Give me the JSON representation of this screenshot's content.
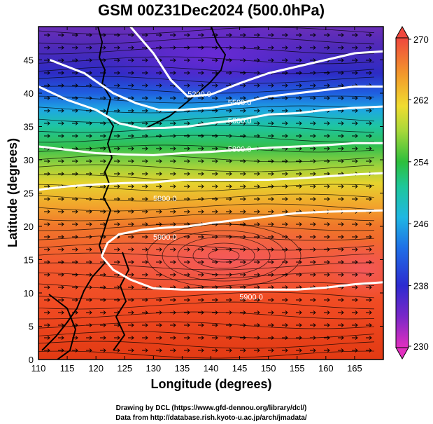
{
  "title": "GSM 00Z31Dec2024 (500.0hPa)",
  "footer": {
    "line1": "Drawing by DCL (https://www.gfd-dennou.org/library/dcl/)",
    "line2": "Data from http://database.rish.kyoto-u.ac.jp/arch/jmadata/"
  },
  "chart_data": {
    "type": "heatmap",
    "title": "GSM 00Z31Dec2024 (500.0hPa)",
    "xlabel": "Longitude (degrees)",
    "ylabel": "Latitude  (degrees)",
    "xlim": [
      110,
      170
    ],
    "ylim": [
      0,
      50
    ],
    "x_ticks": [
      "110",
      "115",
      "120",
      "125",
      "130",
      "135",
      "140",
      "145",
      "150",
      "155",
      "160",
      "165"
    ],
    "y_ticks": [
      "0",
      "5",
      "10",
      "15",
      "20",
      "25",
      "30",
      "35",
      "40",
      "45"
    ],
    "colorbar": {
      "min": 230,
      "max": 270,
      "tick_labels": [
        "230",
        "238",
        "246",
        "254",
        "262",
        "270"
      ]
    },
    "contours": [
      {
        "label": "5200.0",
        "label_pos": [
          138,
          39.5
        ],
        "points": [
          [
            126,
            50
          ],
          [
            130,
            46
          ],
          [
            133,
            42
          ],
          [
            136,
            39.5
          ],
          [
            140,
            39.8
          ],
          [
            145,
            41.5
          ],
          [
            150,
            43
          ],
          [
            155,
            44
          ],
          [
            160,
            45
          ],
          [
            165,
            46
          ],
          [
            170,
            46.3
          ]
        ]
      },
      {
        "label": "5500.0",
        "label_pos": [
          145,
          38.2
        ],
        "points": [
          [
            112,
            45
          ],
          [
            118,
            43
          ],
          [
            123,
            40
          ],
          [
            127,
            38.5
          ],
          [
            131,
            37.5
          ],
          [
            135,
            37.5
          ],
          [
            140,
            37.8
          ],
          [
            145,
            38.5
          ],
          [
            150,
            39.5
          ],
          [
            155,
            40
          ],
          [
            160,
            40.5
          ],
          [
            165,
            41
          ],
          [
            170,
            41
          ]
        ]
      },
      {
        "label": "5600.0",
        "label_pos": [
          145,
          35.5
        ],
        "points": [
          [
            110,
            41
          ],
          [
            115,
            39
          ],
          [
            120,
            37.5
          ],
          [
            124,
            35.5
          ],
          [
            128,
            34.7
          ],
          [
            132,
            34.8
          ],
          [
            136,
            35
          ],
          [
            140,
            35.5
          ],
          [
            145,
            36
          ],
          [
            150,
            36.8
          ],
          [
            155,
            37
          ],
          [
            160,
            37.5
          ],
          [
            165,
            37.8
          ],
          [
            170,
            38
          ]
        ]
      },
      {
        "label": "5800.0",
        "label_pos": [
          145,
          31.2
        ],
        "points": [
          [
            110,
            32
          ],
          [
            115,
            31.5
          ],
          [
            120,
            31
          ],
          [
            125,
            30.8
          ],
          [
            130,
            30.7
          ],
          [
            135,
            31
          ],
          [
            140,
            31.2
          ],
          [
            145,
            31.5
          ],
          [
            150,
            31.8
          ],
          [
            155,
            32
          ],
          [
            160,
            32.2
          ],
          [
            165,
            32.5
          ],
          [
            170,
            32.5
          ]
        ]
      },
      {
        "label": "5800.0",
        "label_pos": [
          132,
          23.8
        ],
        "points": [
          [
            110,
            25.5
          ],
          [
            115,
            26
          ],
          [
            120,
            26.3
          ],
          [
            125,
            26.5
          ],
          [
            130,
            26.6
          ],
          [
            135,
            27
          ],
          [
            140,
            27
          ],
          [
            145,
            27
          ],
          [
            150,
            27
          ],
          [
            155,
            27.2
          ],
          [
            160,
            27.5
          ],
          [
            165,
            27.8
          ],
          [
            170,
            28
          ]
        ]
      },
      {
        "label": "5900.0",
        "label_pos": [
          132,
          18
        ],
        "points": [
          [
            121,
            15.5
          ],
          [
            122,
            17.5
          ],
          [
            124,
            18.8
          ],
          [
            128,
            19.5
          ],
          [
            132,
            19.8
          ],
          [
            136,
            20
          ],
          [
            140,
            20.5
          ],
          [
            145,
            21
          ],
          [
            150,
            21.5
          ],
          [
            155,
            22
          ],
          [
            160,
            22.2
          ],
          [
            165,
            22.3
          ],
          [
            170,
            22.4
          ]
        ]
      },
      {
        "label": "5900.0",
        "label_pos": [
          147,
          9
        ],
        "points": [
          [
            121,
            15.5
          ],
          [
            123,
            13.5
          ],
          [
            126,
            12
          ],
          [
            130,
            10.7
          ],
          [
            135,
            10.5
          ],
          [
            140,
            10.5
          ],
          [
            145,
            10.5
          ],
          [
            150,
            10.5
          ],
          [
            155,
            10.5
          ],
          [
            160,
            10.8
          ],
          [
            165,
            11.3
          ],
          [
            170,
            11.6
          ]
        ]
      }
    ]
  }
}
